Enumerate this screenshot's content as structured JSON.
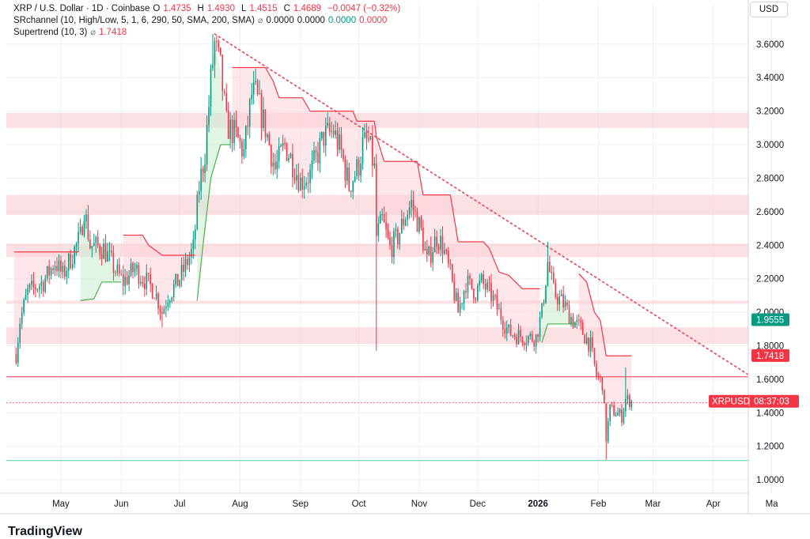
{
  "legend": {
    "symbol_title": "XRP / U.S. Dollar · 1D · Coinbase",
    "ohlc": [
      {
        "k": "O",
        "v": "1.4735"
      },
      {
        "k": "H",
        "v": "1.4930"
      },
      {
        "k": "L",
        "v": "1.4515"
      },
      {
        "k": "C",
        "v": "1.4689"
      }
    ],
    "change": "−0.0047 (−0.32%)",
    "srchannel_label": "SRchannel (10, High/Low, 5, 1, 6, 290, 50, SMA, 200, SMA)",
    "srchannel_values": [
      "0.0000",
      "0.0000",
      "0.0000",
      "0.0000"
    ],
    "supertrend_label": "Supertrend (10, 3)",
    "supertrend_value": "1.7418",
    "eye_icon": "⌀"
  },
  "currency_button": "USD",
  "footer_logo": "TradingView",
  "colors": {
    "up": "#089981",
    "down": "#f23645",
    "zone": "#f7c7cd",
    "supertrend_down": "#f23645",
    "supertrend_up": "#4caf50",
    "support_line": "#4fd1a5",
    "trendline": "#e0566b",
    "grid": "#eef0f3"
  },
  "chart_data": {
    "type": "candlestick",
    "x_axis_ticks": [
      "May",
      "Jun",
      "Jul",
      "Aug",
      "Sep",
      "Oct",
      "Nov",
      "Dec",
      "2026",
      "Feb",
      "Mar",
      "Apr",
      "Ma"
    ],
    "y_axis_ticks": [
      "3.6000",
      "3.4000",
      "3.2000",
      "3.0000",
      "2.8000",
      "2.6000",
      "2.4000",
      "2.2000",
      "2.0000",
      "1.8000",
      "1.6000",
      "1.4000",
      "1.2000",
      "1.0000"
    ],
    "y_range": [
      0.93,
      3.75
    ],
    "price_labels": [
      {
        "text": "1.9555",
        "value": 1.9555,
        "color": "#089981"
      },
      {
        "text": "1.7418",
        "value": 1.7418,
        "color": "#f23645"
      },
      {
        "text": "XRPUSD",
        "value": 1.4689,
        "color": "#f23645",
        "extra": "08:37:03"
      }
    ],
    "sr_zones": [
      [
        3.1,
        3.19
      ],
      [
        2.58,
        2.7
      ],
      [
        2.33,
        2.41
      ],
      [
        2.05,
        2.07
      ],
      [
        1.81,
        1.91
      ]
    ],
    "horizontal_lines": [
      {
        "value": 1.615,
        "color": "#f23645"
      },
      {
        "value": 1.46,
        "color": "#f23645",
        "dotted": true
      },
      {
        "value": 1.115,
        "color": "#4fd1a5"
      }
    ],
    "trendline": [
      {
        "date": "2025-07-19",
        "price": 3.66
      },
      {
        "date": "2026-04-20",
        "price": 1.62
      }
    ],
    "waypoints": [
      [
        "2025-04-08",
        1.75
      ],
      [
        "2025-04-10",
        1.95
      ],
      [
        "2025-04-14",
        2.12
      ],
      [
        "2025-04-22",
        2.18
      ],
      [
        "2025-04-28",
        2.3
      ],
      [
        "2025-05-02",
        2.22
      ],
      [
        "2025-05-11",
        2.45
      ],
      [
        "2025-05-13",
        2.62
      ],
      [
        "2025-05-16",
        2.4
      ],
      [
        "2025-05-23",
        2.38
      ],
      [
        "2025-05-29",
        2.25
      ],
      [
        "2025-06-02",
        2.18
      ],
      [
        "2025-06-08",
        2.26
      ],
      [
        "2025-06-14",
        2.18
      ],
      [
        "2025-06-18",
        2.13
      ],
      [
        "2025-06-22",
        2.0
      ],
      [
        "2025-06-25",
        2.1
      ],
      [
        "2025-06-30",
        2.18
      ],
      [
        "2025-07-03",
        2.25
      ],
      [
        "2025-07-08",
        2.38
      ],
      [
        "2025-07-11",
        2.75
      ],
      [
        "2025-07-14",
        2.95
      ],
      [
        "2025-07-17",
        3.38
      ],
      [
        "2025-07-19",
        3.6
      ],
      [
        "2025-07-22",
        3.45
      ],
      [
        "2025-07-25",
        3.12
      ],
      [
        "2025-07-30",
        3.05
      ],
      [
        "2025-08-03",
        2.95
      ],
      [
        "2025-08-07",
        3.3
      ],
      [
        "2025-08-09",
        3.3
      ],
      [
        "2025-08-14",
        3.1
      ],
      [
        "2025-08-19",
        2.85
      ],
      [
        "2025-08-24",
        3.0
      ],
      [
        "2025-08-27",
        2.92
      ],
      [
        "2025-09-01",
        2.78
      ],
      [
        "2025-09-06",
        2.82
      ],
      [
        "2025-09-10",
        2.95
      ],
      [
        "2025-09-13",
        3.05
      ],
      [
        "2025-09-18",
        3.08
      ],
      [
        "2025-09-22",
        2.95
      ],
      [
        "2025-09-26",
        2.75
      ],
      [
        "2025-10-01",
        2.88
      ],
      [
        "2025-10-03",
        3.0
      ],
      [
        "2025-10-06",
        3.02
      ],
      [
        "2025-10-09",
        2.85
      ],
      [
        "2025-10-10",
        2.45
      ],
      [
        "2025-10-13",
        2.55
      ],
      [
        "2025-10-17",
        2.38
      ],
      [
        "2025-10-21",
        2.45
      ],
      [
        "2025-10-25",
        2.58
      ],
      [
        "2025-10-28",
        2.65
      ],
      [
        "2025-11-02",
        2.48
      ],
      [
        "2025-11-05",
        2.3
      ],
      [
        "2025-11-10",
        2.45
      ],
      [
        "2025-11-13",
        2.4
      ],
      [
        "2025-11-17",
        2.22
      ],
      [
        "2025-11-21",
        2.0
      ],
      [
        "2025-11-25",
        2.18
      ],
      [
        "2025-11-30",
        2.12
      ],
      [
        "2025-12-03",
        2.18
      ],
      [
        "2025-12-08",
        2.1
      ],
      [
        "2025-12-12",
        2.0
      ],
      [
        "2025-12-17",
        1.88
      ],
      [
        "2025-12-22",
        1.86
      ],
      [
        "2025-12-27",
        1.85
      ],
      [
        "2025-12-31",
        1.85
      ],
      [
        "2026-01-03",
        2.0
      ],
      [
        "2026-01-06",
        2.3
      ],
      [
        "2026-01-09",
        2.12
      ],
      [
        "2026-01-14",
        2.05
      ],
      [
        "2026-01-19",
        1.95
      ],
      [
        "2026-01-23",
        1.9
      ],
      [
        "2026-01-28",
        1.8
      ],
      [
        "2026-01-31",
        1.62
      ],
      [
        "2026-02-03",
        1.58
      ],
      [
        "2026-02-05",
        1.25
      ],
      [
        "2026-02-07",
        1.42
      ],
      [
        "2026-02-10",
        1.4
      ],
      [
        "2026-02-13",
        1.38
      ],
      [
        "2026-02-15",
        1.48
      ],
      [
        "2026-02-18",
        1.47
      ]
    ],
    "spikes": [
      {
        "date": "2025-04-07",
        "low": 1.72
      },
      {
        "date": "2025-06-22",
        "low": 1.91
      },
      {
        "date": "2025-07-18",
        "high": 3.66
      },
      {
        "date": "2025-10-10",
        "low": 1.77
      },
      {
        "date": "2026-01-06",
        "high": 2.42
      },
      {
        "date": "2026-02-05",
        "low": 1.12
      },
      {
        "date": "2026-02-15",
        "high": 1.67
      }
    ],
    "supertrend": [
      {
        "date": "2025-04-07",
        "value": 2.36,
        "dir": "down"
      },
      {
        "date": "2025-05-10",
        "value": 2.36,
        "dir": "down"
      },
      {
        "date": "2025-05-11",
        "value": 2.07,
        "dir": "up"
      },
      {
        "date": "2025-05-18",
        "value": 2.08,
        "dir": "up"
      },
      {
        "date": "2025-05-22",
        "value": 2.18,
        "dir": "up"
      },
      {
        "date": "2025-06-01",
        "value": 2.18,
        "dir": "up"
      },
      {
        "date": "2025-06-02",
        "value": 2.46,
        "dir": "down"
      },
      {
        "date": "2025-06-12",
        "value": 2.46,
        "dir": "down"
      },
      {
        "date": "2025-06-15",
        "value": 2.4,
        "dir": "down"
      },
      {
        "date": "2025-06-22",
        "value": 2.34,
        "dir": "down"
      },
      {
        "date": "2025-07-09",
        "value": 2.34,
        "dir": "down"
      },
      {
        "date": "2025-07-10",
        "value": 2.07,
        "dir": "up"
      },
      {
        "date": "2025-07-13",
        "value": 2.4,
        "dir": "up"
      },
      {
        "date": "2025-07-17",
        "value": 2.8,
        "dir": "up"
      },
      {
        "date": "2025-07-22",
        "value": 3.0,
        "dir": "up"
      },
      {
        "date": "2025-07-27",
        "value": 3.0,
        "dir": "up"
      },
      {
        "date": "2025-07-28",
        "value": 3.46,
        "dir": "down"
      },
      {
        "date": "2025-08-14",
        "value": 3.46,
        "dir": "down"
      },
      {
        "date": "2025-08-18",
        "value": 3.38,
        "dir": "down"
      },
      {
        "date": "2025-08-21",
        "value": 3.28,
        "dir": "down"
      },
      {
        "date": "2025-09-02",
        "value": 3.28,
        "dir": "down"
      },
      {
        "date": "2025-09-06",
        "value": 3.2,
        "dir": "down"
      },
      {
        "date": "2025-09-28",
        "value": 3.2,
        "dir": "down"
      },
      {
        "date": "2025-09-30",
        "value": 3.14,
        "dir": "down"
      },
      {
        "date": "2025-10-09",
        "value": 3.14,
        "dir": "down"
      },
      {
        "date": "2025-10-10",
        "value": 3.05,
        "dir": "down"
      },
      {
        "date": "2025-10-14",
        "value": 2.9,
        "dir": "down"
      },
      {
        "date": "2025-10-31",
        "value": 2.9,
        "dir": "down"
      },
      {
        "date": "2025-11-03",
        "value": 2.7,
        "dir": "down"
      },
      {
        "date": "2025-11-17",
        "value": 2.7,
        "dir": "down"
      },
      {
        "date": "2025-11-21",
        "value": 2.42,
        "dir": "down"
      },
      {
        "date": "2025-12-04",
        "value": 2.42,
        "dir": "down"
      },
      {
        "date": "2025-12-07",
        "value": 2.38,
        "dir": "down"
      },
      {
        "date": "2025-12-12",
        "value": 2.24,
        "dir": "down"
      },
      {
        "date": "2025-12-17",
        "value": 2.22,
        "dir": "down"
      },
      {
        "date": "2025-12-24",
        "value": 2.14,
        "dir": "down"
      },
      {
        "date": "2026-01-02",
        "value": 2.14,
        "dir": "down"
      },
      {
        "date": "2026-01-03",
        "value": 1.82,
        "dir": "up"
      },
      {
        "date": "2026-01-06",
        "value": 1.93,
        "dir": "up"
      },
      {
        "date": "2026-01-21",
        "value": 1.93,
        "dir": "up"
      },
      {
        "date": "2026-01-22",
        "value": 2.23,
        "dir": "down"
      },
      {
        "date": "2026-01-26",
        "value": 2.18,
        "dir": "down"
      },
      {
        "date": "2026-01-30",
        "value": 2.0,
        "dir": "down"
      },
      {
        "date": "2026-02-02",
        "value": 1.95,
        "dir": "down"
      },
      {
        "date": "2026-02-05",
        "value": 1.74,
        "dir": "down"
      },
      {
        "date": "2026-02-18",
        "value": 1.74,
        "dir": "down"
      }
    ]
  }
}
